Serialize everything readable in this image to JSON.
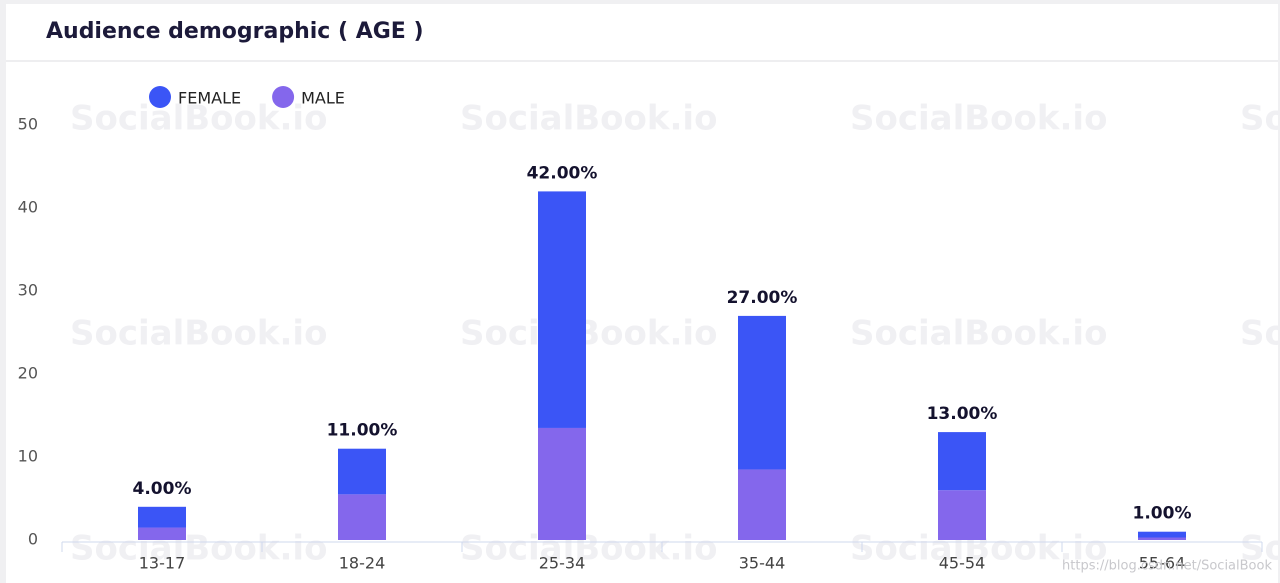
{
  "chart_data": {
    "type": "stacked-bar",
    "title": "Audience demographic ( AGE )",
    "categories": [
      "13-17",
      "18-24",
      "25-34",
      "35-44",
      "45-54",
      "55-64"
    ],
    "series": [
      {
        "name": "FEMALE",
        "color": "#3b55f6",
        "values": [
          2.5,
          5.5,
          28.5,
          18.5,
          7,
          0.7
        ]
      },
      {
        "name": "MALE",
        "color": "#8467ec",
        "values": [
          1.5,
          5.5,
          13.5,
          8.5,
          6,
          0.3
        ]
      }
    ],
    "totals": [
      4,
      11,
      42,
      27,
      13,
      1
    ],
    "total_labels": [
      "4.00%",
      "11.00%",
      "42.00%",
      "27.00%",
      "13.00%",
      "1.00%"
    ],
    "ylim": [
      0,
      50
    ],
    "yticks": [
      0,
      10,
      20,
      30,
      40,
      50
    ],
    "watermark": "SocialBook.io",
    "credit": "https://blog.csdn.net/SocialBook"
  }
}
